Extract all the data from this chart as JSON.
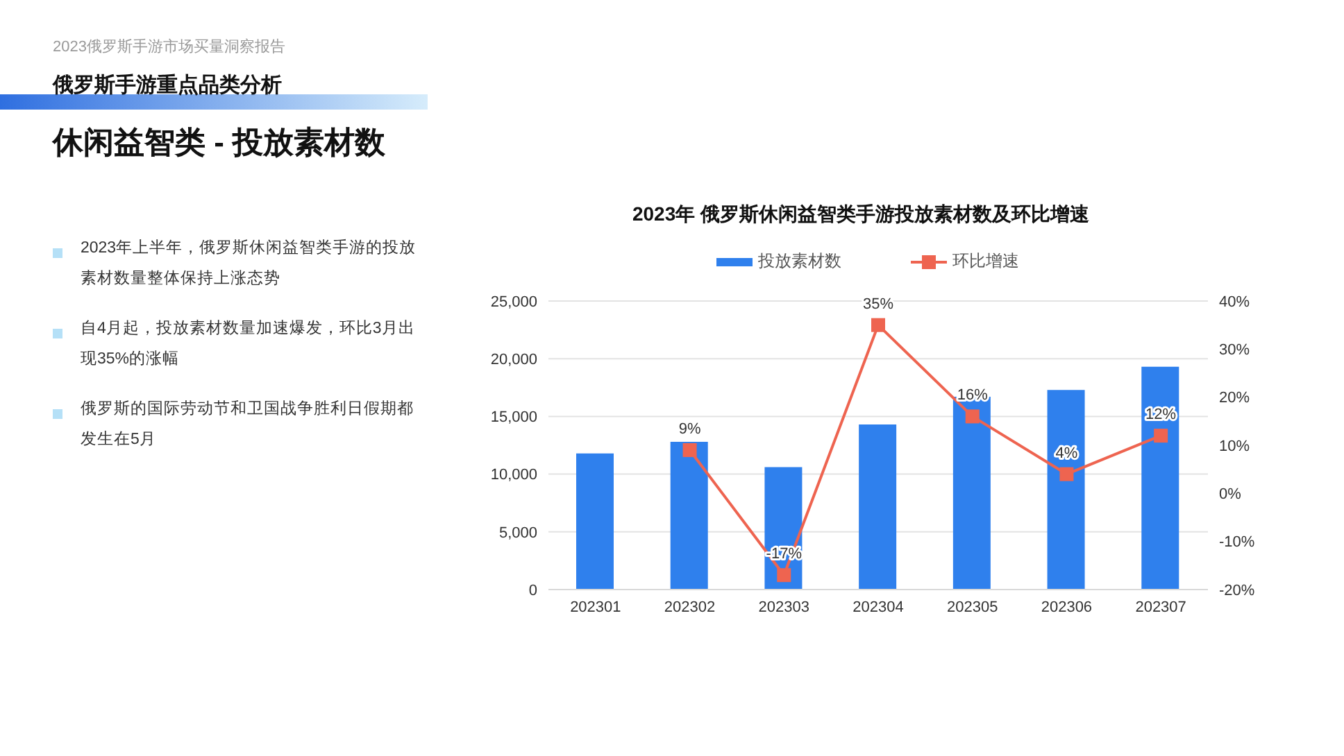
{
  "chart_data": {
    "type": "bar",
    "title": "2023年 俄罗斯休闲益智类手游投放素材数及环比增速",
    "annotations": [
      "2023俄罗斯手游市场买量洞察报告",
      "俄罗斯手游重点品类分析",
      "休闲益智类 - 投放素材数",
      "2023年上半年，俄罗斯休闲益智类手游的投放素材数量整体保持上涨态势",
      "自4月起，投放素材数量加速爆发，环比3月出现35%的涨幅",
      "俄罗斯的国际劳动节和卫国战争胜利日假期都发生在5月"
    ],
    "categories": [
      "202301",
      "202302",
      "202303",
      "202304",
      "202305",
      "202306",
      "202307"
    ],
    "series": [
      {
        "name": "投放素材数",
        "color": "#2f80ed",
        "values": [
          11800,
          12800,
          10600,
          14300,
          16700,
          17300,
          19300
        ]
      },
      {
        "name": "环比增速",
        "type": "line",
        "axis": "y2",
        "color": "#ee6450",
        "marker": "square",
        "values": [
          null,
          9,
          -17,
          35,
          16,
          4,
          12
        ],
        "value_labels": [
          null,
          "9%",
          "-17%",
          "35%",
          "16%",
          "4%",
          "12%"
        ]
      }
    ],
    "ylim": [
      0,
      25000
    ],
    "yticks": [
      {
        "value": 0,
        "label": "0"
      },
      {
        "value": 5000,
        "label": "5,000"
      },
      {
        "value": 10000,
        "label": "10,000"
      },
      {
        "value": 15000,
        "label": "15,000"
      },
      {
        "value": 20000,
        "label": "20,000"
      },
      {
        "value": 25000,
        "label": "25,000"
      }
    ],
    "y2lim": [
      -20,
      40
    ],
    "y2ticks": [
      {
        "value": -20,
        "label": "-20%"
      },
      {
        "value": -10,
        "label": "-10%"
      },
      {
        "value": 0,
        "label": "0%"
      },
      {
        "value": 10,
        "label": "10%"
      },
      {
        "value": 20,
        "label": "20%"
      },
      {
        "value": 30,
        "label": "30%"
      },
      {
        "value": 40,
        "label": "40%"
      }
    ],
    "grid": "y",
    "legend": "top"
  }
}
